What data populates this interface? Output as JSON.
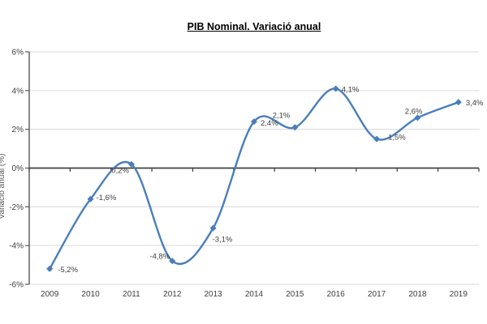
{
  "title": "PIB Nominal. Variació anual",
  "chart_data": {
    "type": "line",
    "title": "PIB Nominal. Variació anual",
    "x": [
      "2009",
      "2010",
      "2011",
      "2012",
      "2013",
      "2014",
      "2015",
      "2016",
      "2017",
      "2018",
      "2019"
    ],
    "series": [
      {
        "name": "PIB Nominal",
        "values": [
          -5.2,
          -1.6,
          0.2,
          -4.8,
          -3.1,
          2.4,
          2.1,
          4.1,
          1.5,
          2.6,
          3.4
        ]
      }
    ],
    "point_labels": [
      "-5,2%",
      "-1,6%",
      "0,2%",
      "-4,8%",
      "-3,1%",
      "2,4%",
      "2,1%",
      "4,1%",
      "1,5%",
      "2,6%",
      "3,4%"
    ],
    "xlabel": "",
    "ylabel": "Variació anual (%)",
    "ylim": [
      -6,
      6
    ],
    "ytick_step": 2,
    "ytick_labels": [
      "6%",
      "4%",
      "2%",
      "0%",
      "-2%",
      "-4%",
      "-6%"
    ],
    "grid": true,
    "legend": "none",
    "smooth": true,
    "marker": "diamond",
    "colors": {
      "line": "#4a7ebb",
      "marker": "#4a7ebb",
      "gridline": "#d9d9d9",
      "axis": "#595959",
      "zero_line": "#404040",
      "label_text": "#404040",
      "title_text": "#000000"
    }
  }
}
